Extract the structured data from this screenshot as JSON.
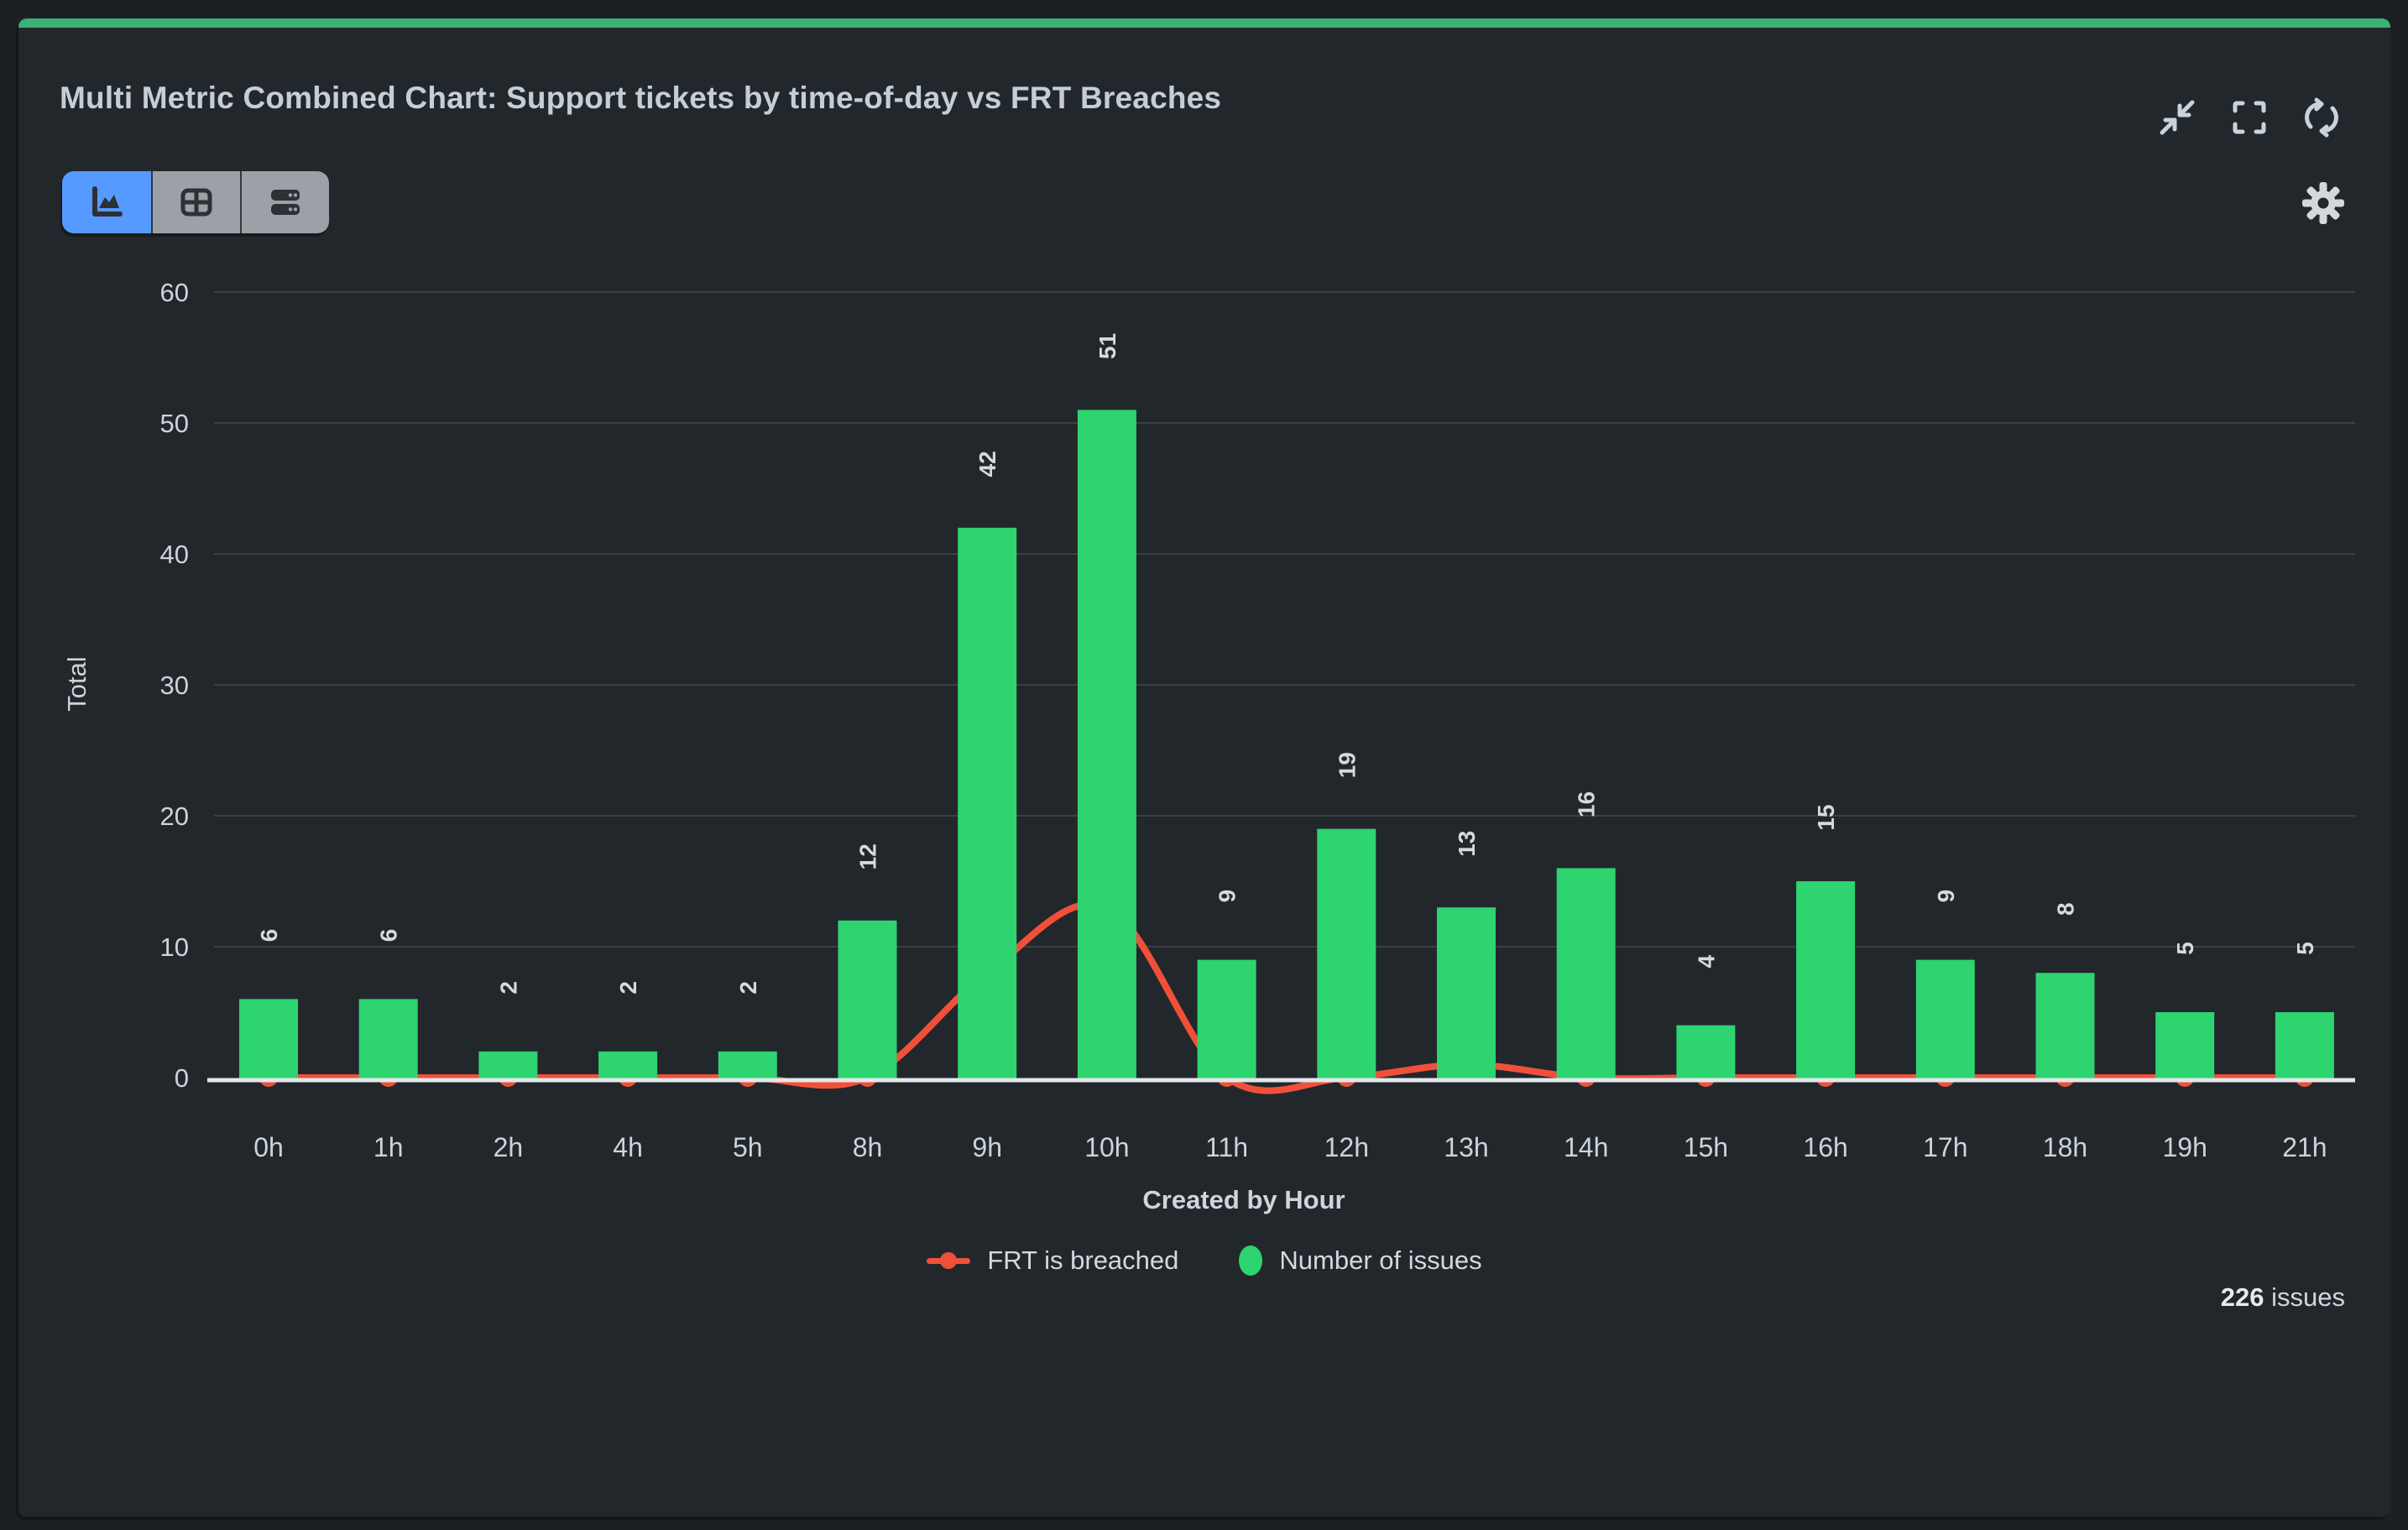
{
  "header": {
    "title": "Multi Metric Combined Chart: Support tickets by time-of-day vs FRT Breaches",
    "icons": [
      "collapse-icon",
      "fullscreen-icon",
      "refresh-icon"
    ]
  },
  "toolbar": {
    "views": [
      "area-chart-view",
      "table-view",
      "rows-view"
    ],
    "selected_view": "area-chart-view",
    "settings_icon": "gear-icon"
  },
  "chart_data": {
    "type": "combo-bar-line",
    "categories": [
      "0h",
      "1h",
      "2h",
      "4h",
      "5h",
      "8h",
      "9h",
      "10h",
      "11h",
      "12h",
      "13h",
      "14h",
      "15h",
      "16h",
      "17h",
      "18h",
      "19h",
      "21h"
    ],
    "series": [
      {
        "name": "FRT is breached",
        "type": "line",
        "color": "#f0503a",
        "values": [
          0,
          0,
          0,
          0,
          0,
          0,
          8,
          13,
          0,
          0,
          1,
          0,
          0,
          0,
          0,
          0,
          0,
          0
        ]
      },
      {
        "name": "Number of issues",
        "type": "bar",
        "color": "#2dd470",
        "values": [
          6,
          6,
          2,
          2,
          2,
          12,
          42,
          51,
          9,
          19,
          13,
          16,
          4,
          15,
          9,
          8,
          5,
          5
        ]
      }
    ],
    "xlabel": "Created by Hour",
    "ylabel": "Total",
    "ylim": [
      0,
      60
    ],
    "yticks": [
      0,
      10,
      20,
      30,
      40,
      50,
      60
    ],
    "grid": true,
    "legend_position": "bottom"
  },
  "footer": {
    "count": "226",
    "count_suffix": "issues"
  },
  "colors": {
    "background": "#1c2024",
    "card": "#22272c",
    "accent_bar": "#3ab276",
    "bar": "#2dd470",
    "line": "#f0503a",
    "gridline": "#3a4045",
    "axis_line": "#e4e7ea",
    "tick_text": "#ccd4da",
    "title_text": "#c5ced6",
    "selected_view_bg": "#569aff",
    "unselected_view_bg": "#9ba1a7"
  }
}
